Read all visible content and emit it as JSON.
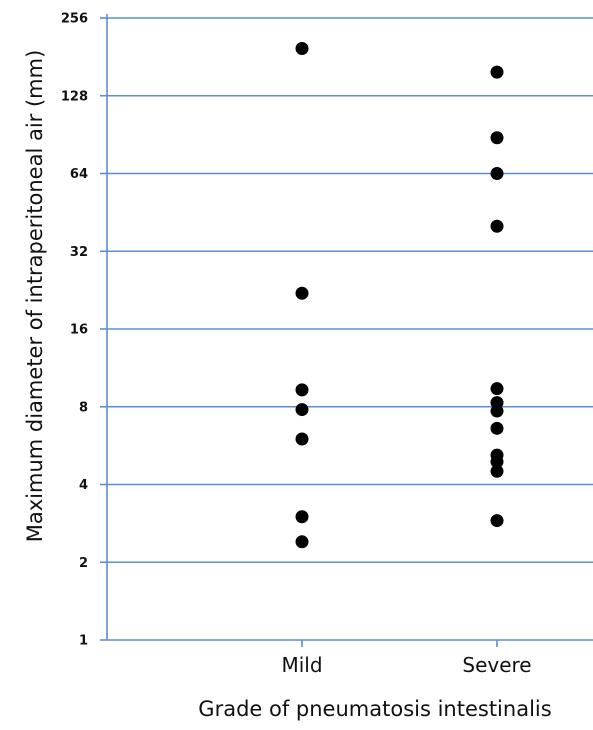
{
  "chart_data": {
    "type": "scatter",
    "title": "",
    "xlabel": "Grade of pneumatosis intestinalis",
    "ylabel": "Maximum diameter of intraperitoneal air (mm)",
    "y_scale": "log2",
    "ylim": [
      1,
      256
    ],
    "y_ticks": [
      "1",
      "2",
      "4",
      "8",
      "16",
      "32",
      "64",
      "128",
      "256"
    ],
    "categories": [
      "Mild",
      "Severe"
    ],
    "grid": "horizontal",
    "series": [
      {
        "category": "Mild",
        "values": [
          195,
          22,
          9.3,
          7.8,
          6,
          3,
          2.4
        ]
      },
      {
        "category": "Severe",
        "values": [
          158,
          88,
          64,
          40,
          9.4,
          8.3,
          7.7,
          6.6,
          5.2,
          4.9,
          4.5,
          2.9
        ]
      }
    ],
    "colors": {
      "grid": "#5b8fd1",
      "axis": "#5b8fd1",
      "point": "#000000"
    }
  }
}
